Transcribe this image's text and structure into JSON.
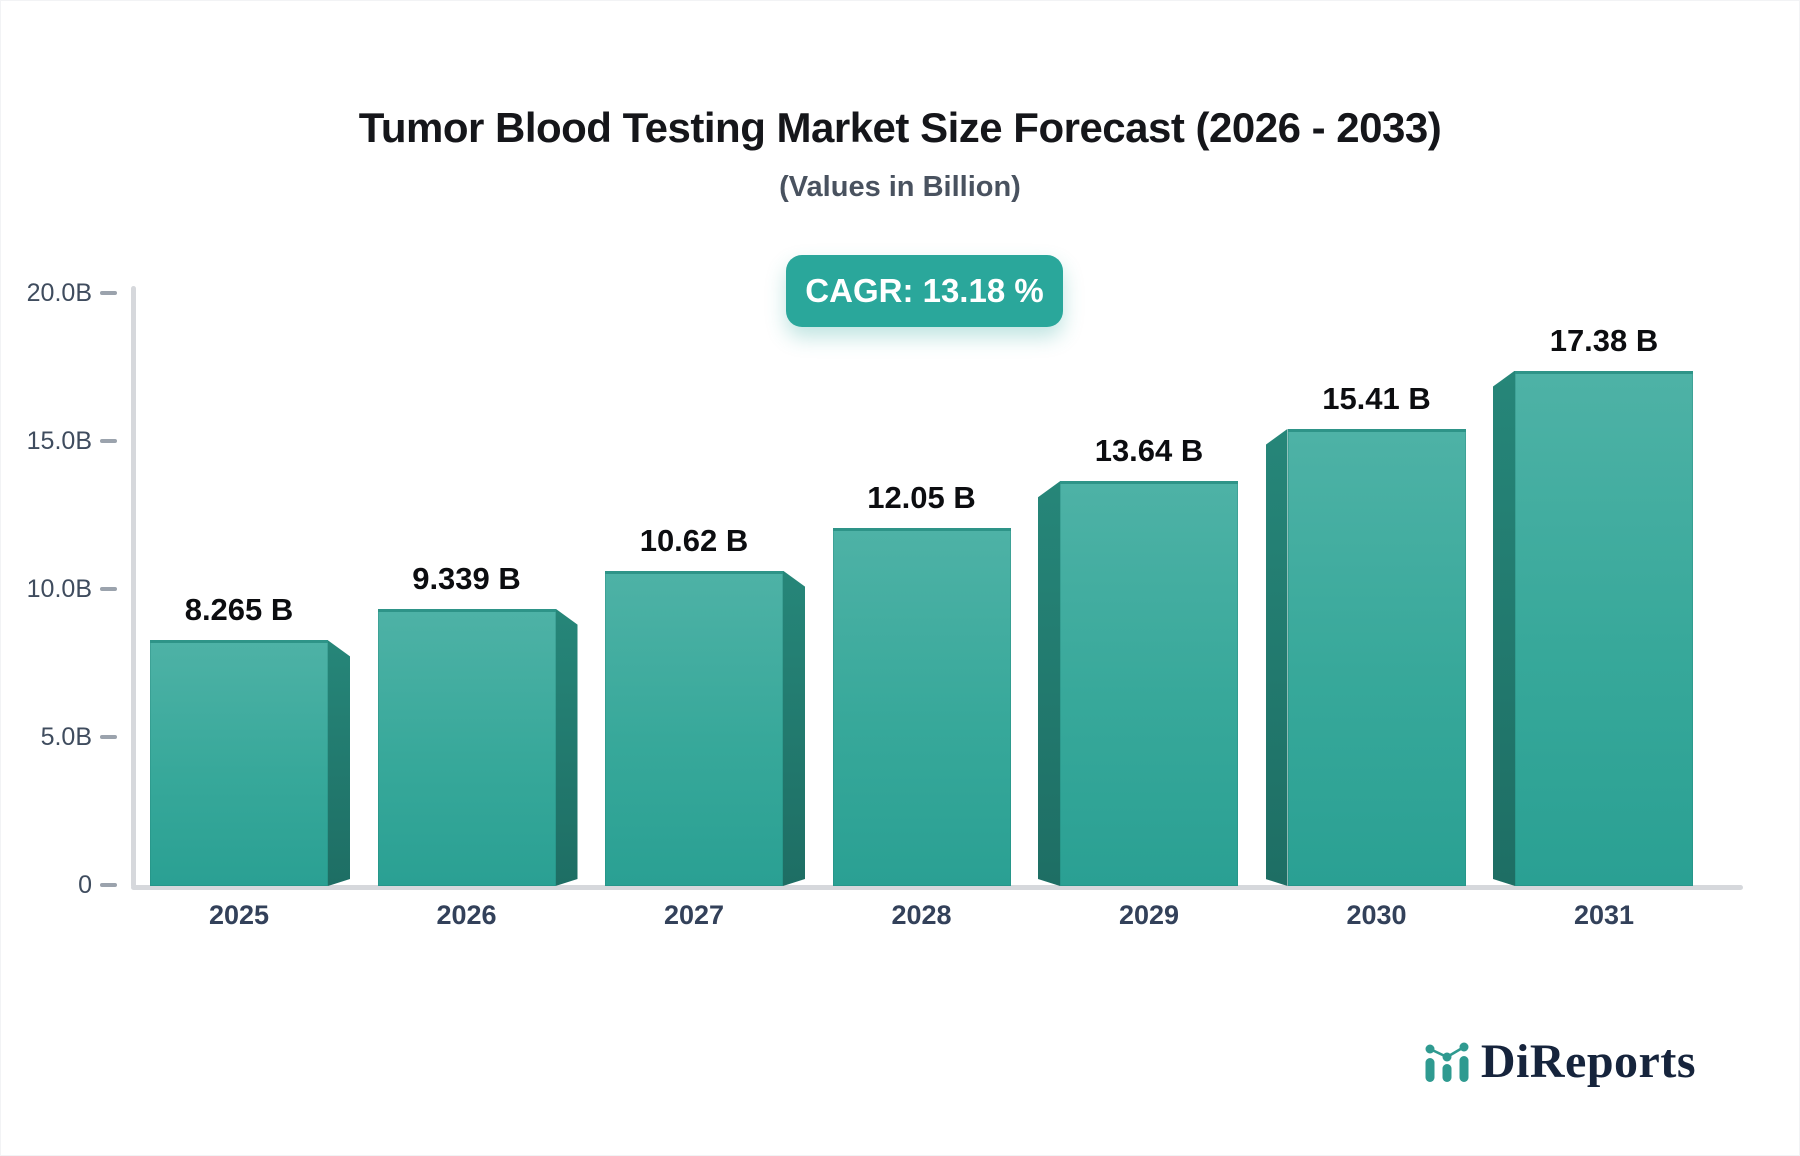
{
  "header": {
    "title": "Tumor Blood Testing Market Size Forecast (2026 - 2033)",
    "subtitle": "(Values in Billion)",
    "cagr_badge": "CAGR: 13.18 %"
  },
  "chart_data": {
    "type": "bar",
    "title": "Tumor Blood Testing Market Size Forecast (2026 - 2033)",
    "subtitle": "(Values in Billion)",
    "categories": [
      "2025",
      "2026",
      "2027",
      "2028",
      "2029",
      "2030",
      "2031"
    ],
    "values": [
      8.265,
      9.339,
      10.62,
      12.05,
      13.64,
      15.41,
      17.38
    ],
    "value_labels": [
      "8.265 B",
      "9.339 B",
      "10.62 B",
      "12.05 B",
      "13.64 B",
      "15.41 B",
      "17.38 B"
    ],
    "cagr_percent": 13.18,
    "ylim": [
      0,
      20
    ],
    "y_ticks": [
      {
        "value": 0,
        "label": "0"
      },
      {
        "value": 5,
        "label": "5.0B"
      },
      {
        "value": 10,
        "label": "10.0B"
      },
      {
        "value": 15,
        "label": "15.0B"
      },
      {
        "value": 20,
        "label": "20.0B"
      }
    ],
    "xlabel": "",
    "ylabel": "",
    "grid": false,
    "legend": false,
    "bar_style": "3d-extruded, depth faces toward center bar"
  },
  "colors": {
    "bar_face_top": "#4EB2A6",
    "bar_face_bottom": "#2AA093",
    "bar_side": "#217B71",
    "bar_top_edge": "#2E9488",
    "badge_bg": "#2AA79B",
    "axis_line": "#D6D8DC",
    "tick": "#9BA3AD",
    "title_text": "#15161A",
    "subtitle_text": "#49525F",
    "logo_text": "#16243C",
    "logo_icon": "#2F9A90"
  },
  "logo": {
    "text": "DiReports",
    "icon": "bar-line-chart-icon"
  }
}
